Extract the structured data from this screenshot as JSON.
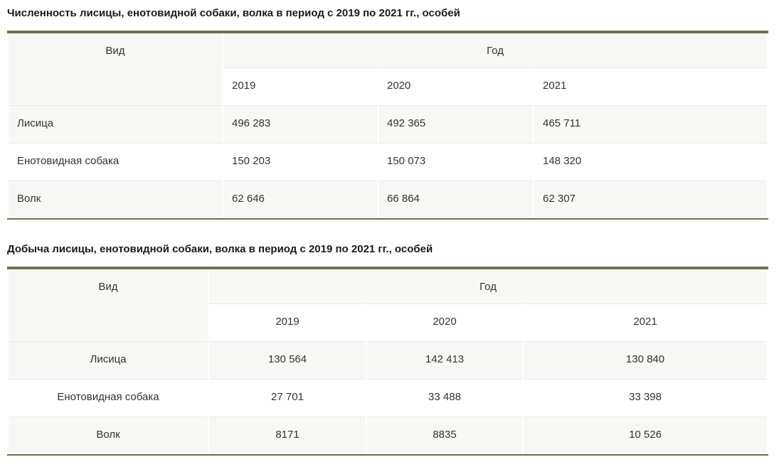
{
  "colors": {
    "accent_olive": "#6b7350",
    "row_alt_bg": "#f7f7f5",
    "grid_line": "#e9e9e7",
    "text": "#333333"
  },
  "tables": [
    {
      "title": "Численность лисицы, енотовидной собаки, волка в период с 2019 по 2021 гг., особей",
      "col_species": "Вид",
      "col_year": "Год",
      "years": [
        "2019",
        "2020",
        "2021"
      ],
      "rows": [
        {
          "species": "Лисица",
          "values": [
            "496 283",
            "492 365",
            "465 711"
          ]
        },
        {
          "species": "Енотовидная собака",
          "values": [
            "150 203",
            "150 073",
            "148 320"
          ]
        },
        {
          "species": "Волк",
          "values": [
            "62 646",
            "66 864",
            "62 307"
          ]
        }
      ]
    },
    {
      "title": "Добыча лисицы, енотовидной собаки, волка в период с 2019 по 2021 гг., особей",
      "col_species": "Вид",
      "col_year": "Год",
      "years": [
        "2019",
        "2020",
        "2021"
      ],
      "rows": [
        {
          "species": "Лисица",
          "values": [
            "130 564",
            "142 413",
            "130 840"
          ]
        },
        {
          "species": "Енотовидная собака",
          "values": [
            "27 701",
            "33 488",
            "33 398"
          ]
        },
        {
          "species": "Волк",
          "values": [
            "8171",
            "8835",
            "10 526"
          ]
        }
      ]
    }
  ]
}
